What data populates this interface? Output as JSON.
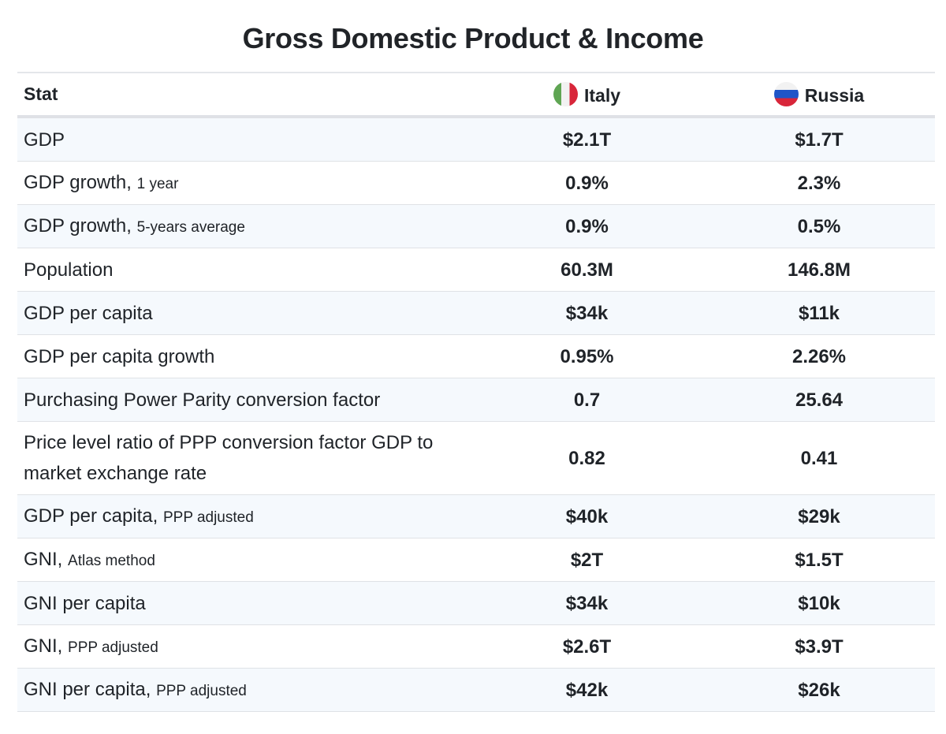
{
  "title": "Gross Domestic Product & Income",
  "header": {
    "stat": "Stat",
    "countries": [
      {
        "name": "Italy",
        "flag_icon": "italy-flag-icon"
      },
      {
        "name": "Russia",
        "flag_icon": "russia-flag-icon"
      }
    ]
  },
  "colors": {
    "row_alt": "#f5f9fd",
    "italy": [
      "#5fa553",
      "#f2f2f2",
      "#d8263a"
    ],
    "russia": [
      "#f2f2f2",
      "#1f55c8",
      "#d8263a"
    ]
  },
  "rows": [
    {
      "label": "GDP",
      "sub": "",
      "italy": "$2.1T",
      "russia": "$1.7T"
    },
    {
      "label": "GDP growth,",
      "sub": "1 year",
      "italy": "0.9%",
      "russia": "2.3%"
    },
    {
      "label": "GDP growth,",
      "sub": "5-years average",
      "italy": "0.9%",
      "russia": "0.5%"
    },
    {
      "label": "Population",
      "sub": "",
      "italy": "60.3M",
      "russia": "146.8M"
    },
    {
      "label": "GDP per capita",
      "sub": "",
      "italy": "$34k",
      "russia": "$11k"
    },
    {
      "label": "GDP per capita growth",
      "sub": "",
      "italy": "0.95%",
      "russia": "2.26%"
    },
    {
      "label": "Purchasing Power Parity conversion factor",
      "sub": "",
      "italy": "0.7",
      "russia": "25.64"
    },
    {
      "label": "Price level ratio of PPP conversion factor GDP to market exchange rate",
      "sub": "",
      "italy": "0.82",
      "russia": "0.41"
    },
    {
      "label": "GDP per capita,",
      "sub": "PPP adjusted",
      "italy": "$40k",
      "russia": "$29k"
    },
    {
      "label": "GNI,",
      "sub": "Atlas method",
      "italy": "$2T",
      "russia": "$1.5T"
    },
    {
      "label": "GNI per capita",
      "sub": "",
      "italy": "$34k",
      "russia": "$10k"
    },
    {
      "label": "GNI,",
      "sub": "PPP adjusted",
      "italy": "$2.6T",
      "russia": "$3.9T"
    },
    {
      "label": "GNI per capita,",
      "sub": "PPP adjusted",
      "italy": "$42k",
      "russia": "$26k"
    }
  ]
}
